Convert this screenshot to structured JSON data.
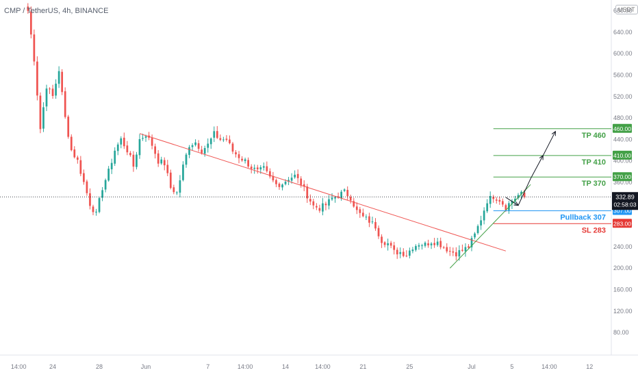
{
  "header": {
    "symbol_title": "CMP / TetherUS, 4h, BINANCE",
    "currency": "USDT"
  },
  "colors": {
    "up": "#26a69a",
    "down": "#ef5350",
    "tp": "#43a047",
    "pullback": "#2196f3",
    "sl": "#e53935",
    "resistance": "#ef5350",
    "support": "#43a047",
    "axis_text": "#787b86",
    "price_badge": "#131722"
  },
  "chart_data": {
    "type": "candlestick",
    "y_axis": {
      "ticks": [
        80,
        120,
        160,
        200,
        240,
        280,
        320,
        360,
        400,
        440,
        480,
        520,
        560,
        600,
        640,
        680
      ],
      "tick_labels": [
        "80.00",
        "120.00",
        "160.00",
        "200.00",
        "240.00",
        "280.00",
        "320.00",
        "360.00",
        "400.00",
        "440.00",
        "480.00",
        "520.00",
        "560.00",
        "600.00",
        "640.00",
        "680.00"
      ],
      "ylim": [
        38,
        700
      ],
      "position": "right"
    },
    "x_axis": {
      "tick_labels": [
        "14:00",
        "24",
        "28",
        "Jun",
        "7",
        "14:00",
        "14",
        "14:00",
        "21",
        "25",
        "Jul",
        "5",
        "14:00",
        "12"
      ],
      "tick_index": [
        -3,
        8,
        23,
        38,
        58,
        70,
        83,
        95,
        108,
        123,
        143,
        156,
        168,
        181
      ]
    },
    "index_range": [
      -9,
      188
    ],
    "candles": {
      "anchors": [
        [
          0,
          680
        ],
        [
          2,
          590
        ],
        [
          4,
          460
        ],
        [
          6,
          540
        ],
        [
          8,
          520
        ],
        [
          10,
          570
        ],
        [
          12,
          480
        ],
        [
          14,
          420
        ],
        [
          16,
          400
        ],
        [
          18,
          360
        ],
        [
          20,
          320
        ],
        [
          22,
          300
        ],
        [
          24,
          350
        ],
        [
          26,
          380
        ],
        [
          28,
          420
        ],
        [
          30,
          440
        ],
        [
          32,
          420
        ],
        [
          34,
          390
        ],
        [
          36,
          440
        ],
        [
          38,
          450
        ],
        [
          40,
          430
        ],
        [
          42,
          400
        ],
        [
          44,
          395
        ],
        [
          46,
          350
        ],
        [
          48,
          340
        ],
        [
          50,
          390
        ],
        [
          52,
          430
        ],
        [
          54,
          435
        ],
        [
          56,
          420
        ],
        [
          58,
          430
        ],
        [
          60,
          450
        ],
        [
          62,
          440
        ],
        [
          64,
          440
        ],
        [
          66,
          418
        ],
        [
          68,
          408
        ],
        [
          70,
          400
        ],
        [
          72,
          388
        ],
        [
          74,
          380
        ],
        [
          76,
          385
        ],
        [
          78,
          368
        ],
        [
          80,
          356
        ],
        [
          82,
          358
        ],
        [
          84,
          368
        ],
        [
          86,
          372
        ],
        [
          88,
          358
        ],
        [
          90,
          336
        ],
        [
          92,
          316
        ],
        [
          94,
          312
        ],
        [
          96,
          318
        ],
        [
          98,
          330
        ],
        [
          100,
          336
        ],
        [
          102,
          342
        ],
        [
          104,
          332
        ],
        [
          106,
          306
        ],
        [
          108,
          295
        ],
        [
          110,
          288
        ],
        [
          112,
          278
        ],
        [
          114,
          252
        ],
        [
          116,
          246
        ],
        [
          118,
          230
        ],
        [
          120,
          230
        ],
        [
          122,
          226
        ],
        [
          124,
          240
        ],
        [
          126,
          246
        ],
        [
          128,
          244
        ],
        [
          130,
          250
        ],
        [
          132,
          248
        ],
        [
          134,
          240
        ],
        [
          136,
          232
        ],
        [
          138,
          228
        ],
        [
          140,
          233
        ],
        [
          142,
          240
        ],
        [
          144,
          262
        ],
        [
          146,
          292
        ],
        [
          148,
          326
        ],
        [
          150,
          334
        ],
        [
          152,
          328
        ],
        [
          154,
          314
        ],
        [
          156,
          326
        ],
        [
          158,
          336
        ],
        [
          160,
          339
        ]
      ],
      "count": 161,
      "last": 332.89
    },
    "resistance_line": {
      "from": [
        36,
        451
      ],
      "to": [
        154,
        232
      ]
    },
    "support_line": {
      "from": [
        136,
        200
      ],
      "to": [
        162,
        356
      ]
    },
    "levels": [
      {
        "name": "TP 460",
        "value": 460,
        "badge": "460.00",
        "role": "tp"
      },
      {
        "name": "TP 410",
        "value": 410,
        "badge": "410.00",
        "role": "tp"
      },
      {
        "name": "TP 370",
        "value": 370,
        "badge": "370.00",
        "role": "tp"
      },
      {
        "name": "Pullback 307",
        "value": 307,
        "badge": "307.00",
        "role": "pullback"
      },
      {
        "name": "SL 283",
        "value": 283,
        "badge": "283.00",
        "role": "sl"
      }
    ],
    "level_start_index": 150,
    "projection_path": [
      [
        154,
        332
      ],
      [
        158,
        317
      ],
      [
        162,
        367
      ],
      [
        166,
        410
      ],
      [
        170,
        455
      ]
    ],
    "current_price": {
      "value": 332.89,
      "label": "332.89",
      "countdown": "02:58:03"
    }
  }
}
